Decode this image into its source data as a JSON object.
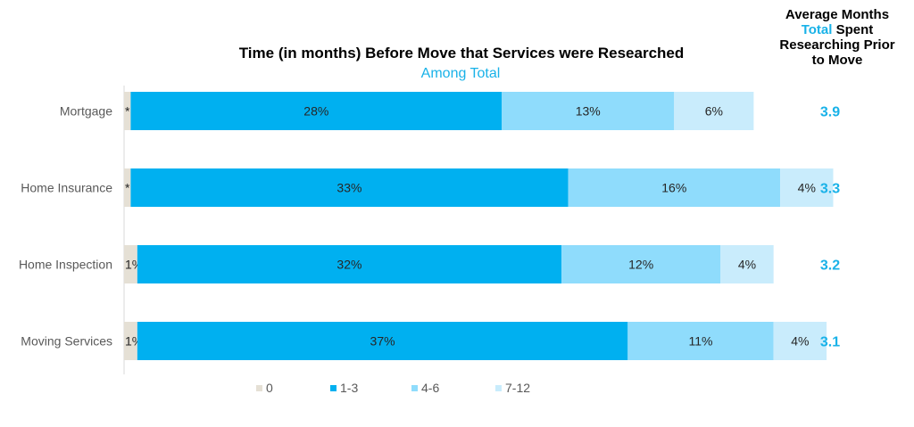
{
  "chart_data": {
    "type": "bar",
    "orientation": "horizontal",
    "stacked": true,
    "title": "Time (in months) Before Move that Services were Researched",
    "subtitle": "Among Total",
    "categories": [
      "Mortgage",
      "Home Insurance",
      "Home Inspection",
      "Moving Services"
    ],
    "series": [
      {
        "name": "0",
        "color": "#e5e0d5",
        "values": [
          0.5,
          0.5,
          1,
          1
        ],
        "labels": [
          "*",
          "*",
          "1%",
          "1%"
        ]
      },
      {
        "name": "1-3",
        "color": "#00b0f0",
        "values": [
          28,
          33,
          32,
          37
        ],
        "labels": [
          "28%",
          "33%",
          "32%",
          "37%"
        ]
      },
      {
        "name": "4-6",
        "color": "#8fdcfc",
        "values": [
          13,
          16,
          12,
          11
        ],
        "labels": [
          "13%",
          "16%",
          "12%",
          "11%"
        ]
      },
      {
        "name": "7-12",
        "color": "#c9ecfc",
        "values": [
          6,
          4,
          4,
          4
        ],
        "labels": [
          "6%",
          "4%",
          "4%",
          "4%"
        ]
      }
    ],
    "legend_position": "bottom",
    "grid": false,
    "side_header": {
      "line1": "Average Months",
      "accent": "Total",
      "line2_rest": " Spent",
      "line3": "Researching Prior",
      "line4": "to Move"
    },
    "side_values": [
      "3.9",
      "3.3",
      "3.2",
      "3.1"
    ],
    "side_value_color": "#19b2e8"
  }
}
